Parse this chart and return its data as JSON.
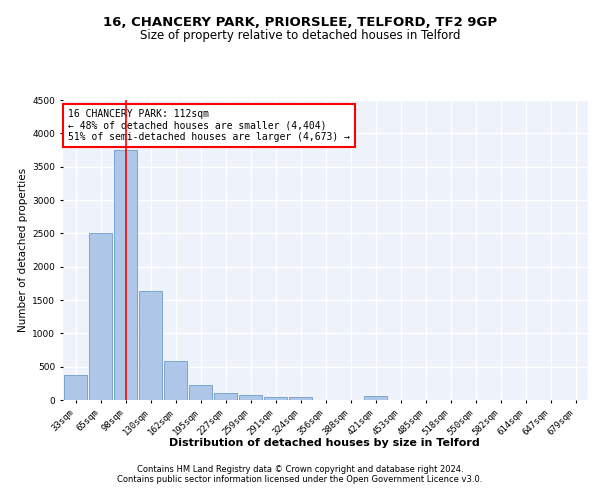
{
  "title1": "16, CHANCERY PARK, PRIORSLEE, TELFORD, TF2 9GP",
  "title2": "Size of property relative to detached houses in Telford",
  "xlabel": "Distribution of detached houses by size in Telford",
  "ylabel": "Number of detached properties",
  "categories": [
    "33sqm",
    "65sqm",
    "98sqm",
    "130sqm",
    "162sqm",
    "195sqm",
    "227sqm",
    "259sqm",
    "291sqm",
    "324sqm",
    "356sqm",
    "388sqm",
    "421sqm",
    "453sqm",
    "485sqm",
    "518sqm",
    "550sqm",
    "582sqm",
    "614sqm",
    "647sqm",
    "679sqm"
  ],
  "values": [
    370,
    2500,
    3750,
    1640,
    590,
    230,
    110,
    70,
    45,
    40,
    0,
    0,
    55,
    0,
    0,
    0,
    0,
    0,
    0,
    0,
    0
  ],
  "bar_color": "#aec6e8",
  "bar_edge_color": "#5a8fc0",
  "vline_x": 2,
  "vline_color": "red",
  "annotation_line1": "16 CHANCERY PARK: 112sqm",
  "annotation_line2": "← 48% of detached houses are smaller (4,404)",
  "annotation_line3": "51% of semi-detached houses are larger (4,673) →",
  "annotation_box_color": "white",
  "annotation_box_edge": "red",
  "ylim": [
    0,
    4500
  ],
  "yticks": [
    0,
    500,
    1000,
    1500,
    2000,
    2500,
    3000,
    3500,
    4000,
    4500
  ],
  "footer1": "Contains HM Land Registry data © Crown copyright and database right 2024.",
  "footer2": "Contains public sector information licensed under the Open Government Licence v3.0.",
  "background_color": "#eef2fb",
  "grid_color": "#ffffff",
  "title1_fontsize": 9.5,
  "title2_fontsize": 8.5,
  "xlabel_fontsize": 8,
  "ylabel_fontsize": 7.5,
  "tick_fontsize": 6.5,
  "footer_fontsize": 6,
  "annot_fontsize": 7
}
